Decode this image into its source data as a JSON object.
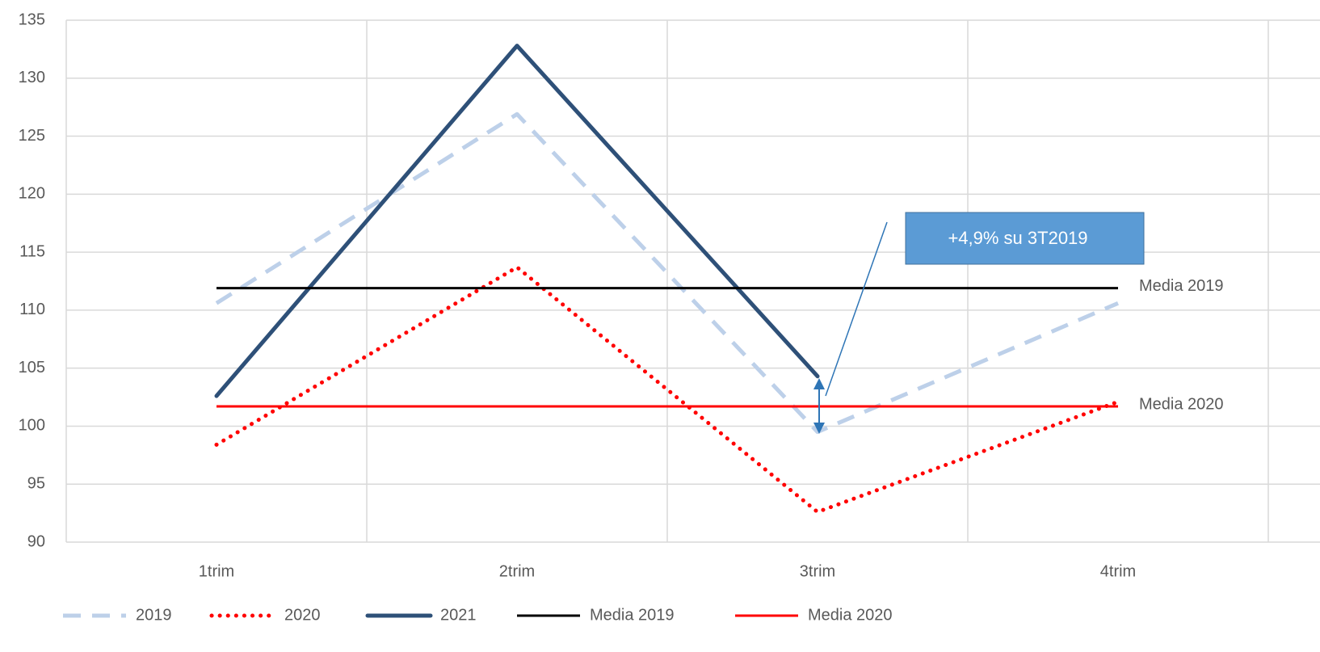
{
  "chart_data": {
    "type": "line",
    "categories": [
      "1trim",
      "2trim",
      "3trim",
      "4trim"
    ],
    "series": [
      {
        "name": "2019",
        "color": "#bdd0e9",
        "style": "dashed",
        "values": [
          110.6,
          126.9,
          99.5,
          110.6
        ]
      },
      {
        "name": "2020",
        "color": "#ff0000",
        "style": "dotted",
        "values": [
          98.4,
          113.7,
          92.6,
          102.1
        ]
      },
      {
        "name": "2021",
        "color": "#2e5078",
        "style": "solid",
        "values": [
          102.6,
          132.8,
          104.3,
          null
        ]
      },
      {
        "name": "Media 2019",
        "color": "#000000",
        "style": "thin",
        "values": [
          111.9,
          111.9,
          111.9,
          111.9
        ]
      },
      {
        "name": "Media 2020",
        "color": "#ff0000",
        "style": "thin",
        "values": [
          101.7,
          101.7,
          101.7,
          101.7
        ]
      }
    ],
    "annotation": "+4,9% su 3T2019",
    "ylim": [
      90,
      135
    ],
    "yticks": [
      90,
      95,
      100,
      105,
      110,
      115,
      120,
      125,
      130,
      135
    ],
    "grid": true,
    "legend": "bottom"
  }
}
